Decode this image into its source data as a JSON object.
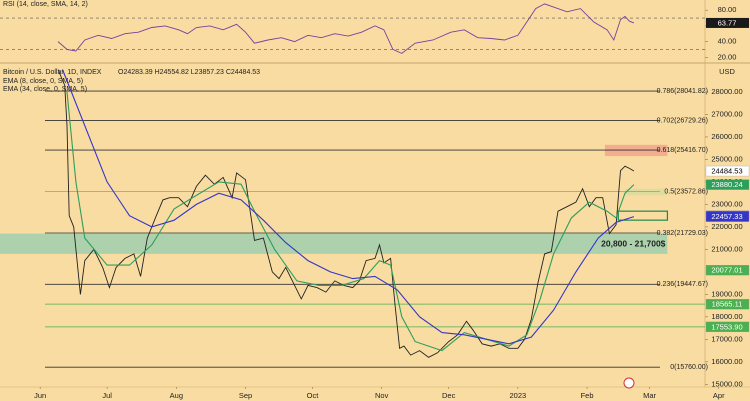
{
  "chart_data": [
    {
      "type": "line",
      "legend_title": "Bitcoin / U.S. Dollar, 1D, INDEX",
      "ohlc": "O24283.39 H24554.82 L23857.23 C24484.53",
      "currency": "USD",
      "xlim": [
        -18,
        318
      ],
      "xticks": [
        {
          "value": 0,
          "label": "Jun"
        },
        {
          "value": 30,
          "label": "Jul"
        },
        {
          "value": 61,
          "label": "Aug"
        },
        {
          "value": 92,
          "label": "Sep"
        },
        {
          "value": 122,
          "label": "Oct"
        },
        {
          "value": 153,
          "label": "Nov"
        },
        {
          "value": 183,
          "label": "Dec"
        },
        {
          "value": 214,
          "label": "2023"
        },
        {
          "value": 245,
          "label": "Feb"
        },
        {
          "value": 273,
          "label": "Mar"
        },
        {
          "value": 304,
          "label": "Apr"
        }
      ],
      "ylim": [
        14880,
        29200
      ],
      "yticks": [
        {
          "value": 28000,
          "label": "28000.00"
        },
        {
          "value": 27000,
          "label": "27000.00"
        },
        {
          "value": 26000,
          "label": "26000.00"
        },
        {
          "value": 25000,
          "label": "25000.00"
        },
        {
          "value": 24000,
          "label": "24000.00"
        },
        {
          "value": 23000,
          "label": "23000.00"
        },
        {
          "value": 22000,
          "label": "22000.00"
        },
        {
          "value": 21000,
          "label": "21000.00"
        },
        {
          "value": 19000,
          "label": "19000.00"
        },
        {
          "value": 18000,
          "label": "18000.00"
        },
        {
          "value": 17000,
          "label": "17000.00"
        },
        {
          "value": 16000,
          "label": "16000.00"
        },
        {
          "value": 15000,
          "label": "15000.00"
        }
      ],
      "series": [
        {
          "name": "Bitcoin / U.S. Dollar, 1D, INDEX",
          "color": "#222222",
          "x": [
            8,
            11,
            12,
            13,
            15,
            18,
            20,
            24,
            28,
            31,
            34,
            38,
            42,
            45,
            48,
            52,
            55,
            58,
            62,
            66,
            70,
            74,
            78,
            82,
            86,
            88,
            92,
            96,
            100,
            104,
            107,
            110,
            113,
            117,
            120,
            124,
            128,
            132,
            136,
            140,
            143,
            146,
            150,
            152,
            154,
            157,
            159,
            161,
            163,
            166,
            170,
            174,
            178,
            183,
            187,
            191,
            194,
            198,
            202,
            206,
            210,
            214,
            217,
            220,
            223,
            226,
            229,
            232,
            236,
            240,
            243,
            246,
            249,
            252,
            255,
            258,
            260,
            262,
            264,
            266
          ],
          "values": [
            29000,
            28300,
            26500,
            22500,
            22000,
            19000,
            20500,
            21000,
            20200,
            19300,
            20200,
            20600,
            20800,
            19800,
            21500,
            22500,
            23200,
            23300,
            23300,
            22900,
            23800,
            24300,
            23900,
            24200,
            23300,
            24400,
            24100,
            21400,
            21500,
            20000,
            19700,
            20200,
            19600,
            18800,
            19400,
            19300,
            19100,
            19600,
            19400,
            19300,
            19600,
            20500,
            20600,
            21200,
            20400,
            20600,
            18500,
            16600,
            16700,
            16300,
            16500,
            16200,
            16400,
            16900,
            17200,
            17800,
            17400,
            16800,
            16700,
            16800,
            16600,
            16600,
            17000,
            17900,
            19500,
            20800,
            20900,
            22700,
            22900,
            23100,
            23700,
            22900,
            23300,
            23300,
            21700,
            22100,
            24500,
            24700,
            24600,
            24484.53
          ]
        },
        {
          "name": "EMA (8, close, 0, SMA, 5)",
          "color": "#2e9e5b",
          "x": [
            12,
            16,
            20,
            30,
            40,
            50,
            60,
            70,
            80,
            90,
            96,
            105,
            115,
            125,
            135,
            145,
            152,
            157,
            162,
            168,
            180,
            190,
            200,
            210,
            218,
            224,
            230,
            238,
            246,
            254,
            258,
            262,
            266
          ],
          "values": [
            28000,
            24000,
            21500,
            20300,
            20300,
            21200,
            22800,
            23400,
            24000,
            23900,
            22700,
            21000,
            19600,
            19400,
            19400,
            19700,
            20500,
            20300,
            18000,
            16900,
            16500,
            17300,
            17000,
            16700,
            17200,
            18800,
            20800,
            22400,
            23100,
            22700,
            22400,
            23500,
            23880.24
          ]
        },
        {
          "name": "EMA (34, close, 0, SMA, 5)",
          "color": "#3535c8",
          "x": [
            10,
            20,
            30,
            40,
            50,
            60,
            70,
            80,
            90,
            100,
            110,
            120,
            130,
            140,
            150,
            160,
            170,
            180,
            190,
            200,
            210,
            220,
            230,
            240,
            250,
            258,
            266
          ],
          "values": [
            29000,
            26500,
            24000,
            22500,
            22000,
            22300,
            23000,
            23500,
            23200,
            22300,
            21300,
            20500,
            20000,
            19700,
            19800,
            19200,
            18000,
            17300,
            17200,
            17000,
            16800,
            17100,
            18300,
            20000,
            21500,
            22200,
            22457.33
          ]
        }
      ],
      "fib_levels": [
        {
          "value": 28041.82,
          "label": "0.786(28041.82)",
          "color": "#333333"
        },
        {
          "value": 26729.26,
          "label": "0.702(26729.26)",
          "color": "#333333"
        },
        {
          "value": 25416.7,
          "label": "0.618(25416.70)",
          "color": "#333333"
        },
        {
          "value": 23572.86,
          "label": "0.5(23572.86)",
          "color": "#7fae6a"
        },
        {
          "value": 21729.03,
          "label": "0.382(21729.03)",
          "color": "#333333"
        },
        {
          "value": 19447.67,
          "label": "0.236(19447.67)",
          "color": "#333333"
        },
        {
          "value": 15760,
          "label": "0(15760.00)",
          "color": "#333333"
        }
      ],
      "zones": [
        {
          "low": 20800,
          "high": 21700,
          "x0": -18,
          "x1": 281,
          "color": "#9fcfae",
          "label": "20,800 - 21,700$"
        },
        {
          "low": 25150,
          "high": 25650,
          "x0": 253,
          "x1": 281,
          "color": "#f2a58c"
        },
        {
          "low": 23400,
          "high": 23700,
          "x0": 262,
          "x1": 281,
          "color": "#dcdc9c"
        },
        {
          "low": 22300,
          "high": 22700,
          "x0": 259,
          "x1": 281,
          "color": "none",
          "stroke": "#1e8a4a"
        }
      ],
      "price_labels": [
        {
          "value": 24484.53,
          "color": "#ffffff",
          "text_color": "#000000"
        },
        {
          "value": 23880.24,
          "color": "#2e9e5b",
          "text_color": "#ffffff"
        },
        {
          "value": 22491.78,
          "color": "#3535c8",
          "text_color": "#ffffff"
        },
        {
          "value": 22457.33,
          "color": "#3535c8",
          "text_color": "#ffffff"
        },
        {
          "value": 20077.01,
          "color": "#4caf50",
          "text_color": "#ffffff"
        },
        {
          "value": 18565.11,
          "color": "#4caf50",
          "text_color": "#ffffff",
          "line": true
        },
        {
          "value": {
            "value": 17553.9,
            "label": "17553.90"
          },
          "color": "#4caf50",
          "text_color": "#ffffff",
          "line": true
        }
      ]
    },
    {
      "type": "line",
      "title": "RSI (14, close, SMA, 14, 2)",
      "xlim": [
        -18,
        318
      ],
      "ylim": [
        14,
        93
      ],
      "yticks": [
        {
          "value": 80,
          "label": "80.00"
        },
        {
          "value": 60,
          "label": "60.00"
        },
        {
          "value": 40,
          "label": "40.00"
        },
        {
          "value": 20,
          "label": "20.00"
        }
      ],
      "bands": [
        70,
        30
      ],
      "current": 63.77,
      "series": [
        {
          "name": "RSI",
          "color": "#7b3fa0",
          "x": [
            8,
            12,
            16,
            20,
            26,
            32,
            38,
            44,
            50,
            56,
            62,
            66,
            70,
            76,
            82,
            88,
            92,
            96,
            102,
            108,
            114,
            120,
            126,
            132,
            138,
            144,
            150,
            154,
            158,
            162,
            168,
            176,
            184,
            190,
            196,
            202,
            208,
            214,
            218,
            222,
            226,
            230,
            236,
            242,
            248,
            254,
            257,
            260,
            262,
            264,
            266
          ],
          "values": [
            40,
            30,
            28,
            42,
            48,
            44,
            50,
            52,
            58,
            60,
            55,
            50,
            58,
            60,
            55,
            62,
            52,
            38,
            42,
            45,
            40,
            48,
            45,
            50,
            47,
            52,
            60,
            55,
            30,
            25,
            38,
            42,
            52,
            55,
            45,
            44,
            42,
            48,
            65,
            82,
            88,
            84,
            78,
            82,
            65,
            55,
            42,
            68,
            72,
            66,
            63.77
          ]
        }
      ]
    }
  ]
}
